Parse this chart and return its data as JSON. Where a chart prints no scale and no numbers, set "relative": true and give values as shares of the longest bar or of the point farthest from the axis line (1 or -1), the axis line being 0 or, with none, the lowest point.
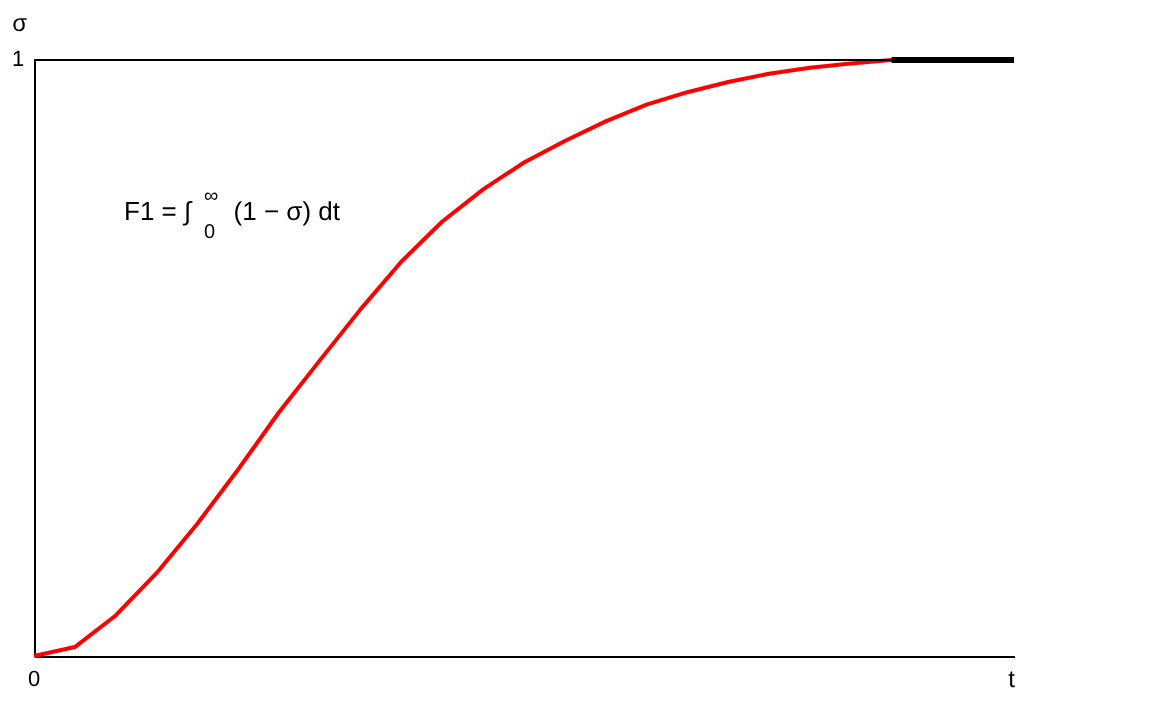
{
  "chart_data": {
    "type": "line",
    "relative": true,
    "xlabel": "t",
    "ylabel": "σ",
    "grid": false,
    "marker": "none",
    "line_style": "solid",
    "categories": [
      null,
      null,
      null,
      null,
      null,
      null,
      null,
      null,
      null,
      null,
      null,
      null,
      null,
      null,
      null,
      null,
      null,
      null,
      null,
      null,
      null,
      null,
      null,
      null,
      null
    ],
    "series": [
      {
        "color": "#ff0000",
        "values": [
          0,
          0.015,
          0.068,
          0.139,
          0.222,
          0.313,
          0.409,
          0.496,
          0.582,
          0.662,
          0.729,
          0.783,
          0.828,
          0.864,
          0.897,
          0.925,
          0.946,
          0.963,
          0.977,
          0.987,
          0.994,
          1,
          null,
          null,
          null
        ]
      },
      {
        "color": "#000000",
        "values": [
          null,
          null,
          null,
          null,
          null,
          null,
          null,
          null,
          null,
          null,
          null,
          null,
          null,
          null,
          null,
          null,
          null,
          null,
          null,
          null,
          null,
          1,
          1,
          1,
          1
        ]
      }
    ],
    "ref_lines": [
      {
        "axis": "y",
        "value": 1,
        "color": "#000000"
      }
    ],
    "annotations": [
      "F1 = ∫$_{0}$$^{∞}$ (1 − σ) dt",
      "1",
      "0"
    ]
  }
}
